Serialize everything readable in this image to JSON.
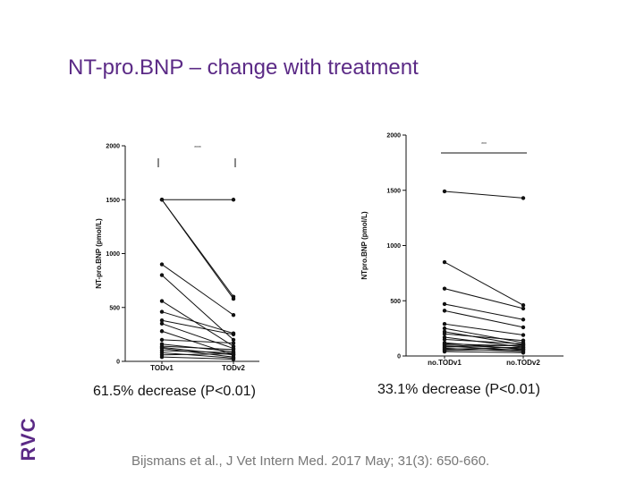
{
  "slide": {
    "title": "NT-pro.BNP – change with treatment",
    "caption_left": "61.5% decrease (P<0.01)",
    "caption_right": "33.1% decrease (P<0.01)",
    "citation": "Bijsmans et al., J Vet Intern Med. 2017 May; 31(3): 650-660.",
    "logo_text": "RVC"
  },
  "colors": {
    "accent": "#5b2a86",
    "line": "#111111"
  },
  "chart_data": [
    {
      "type": "line",
      "id": "left",
      "ylabel": "NT-pro.BNP (pmol/L)",
      "ylim": [
        0,
        2000
      ],
      "yticks": [
        0,
        500,
        1000,
        1500,
        2000
      ],
      "categories": [
        "TODv1",
        "TODv2"
      ],
      "significance": "****",
      "series": [
        [
          1500,
          1500
        ],
        [
          1500,
          580
        ],
        [
          1500,
          600
        ],
        [
          900,
          430
        ],
        [
          800,
          200
        ],
        [
          560,
          140
        ],
        [
          460,
          260
        ],
        [
          380,
          250
        ],
        [
          350,
          120
        ],
        [
          280,
          60
        ],
        [
          200,
          170
        ],
        [
          160,
          90
        ],
        [
          140,
          110
        ],
        [
          130,
          60
        ],
        [
          120,
          40
        ],
        [
          100,
          80
        ],
        [
          80,
          30
        ],
        [
          60,
          70
        ],
        [
          40,
          20
        ]
      ]
    },
    {
      "type": "line",
      "id": "right",
      "ylabel": "NTpro.BNP (pmol/L)",
      "ylim": [
        0,
        2000
      ],
      "yticks": [
        0,
        500,
        1000,
        1500,
        2000
      ],
      "categories": [
        "no.TODv1",
        "no.TODv2"
      ],
      "significance": "***",
      "series": [
        [
          1490,
          1430
        ],
        [
          850,
          460
        ],
        [
          610,
          430
        ],
        [
          470,
          330
        ],
        [
          410,
          260
        ],
        [
          290,
          190
        ],
        [
          250,
          120
        ],
        [
          220,
          100
        ],
        [
          200,
          140
        ],
        [
          170,
          80
        ],
        [
          150,
          110
        ],
        [
          120,
          60
        ],
        [
          110,
          90
        ],
        [
          100,
          70
        ],
        [
          90,
          50
        ],
        [
          80,
          100
        ],
        [
          70,
          40
        ],
        [
          60,
          80
        ],
        [
          50,
          60
        ],
        [
          40,
          30
        ]
      ]
    }
  ]
}
